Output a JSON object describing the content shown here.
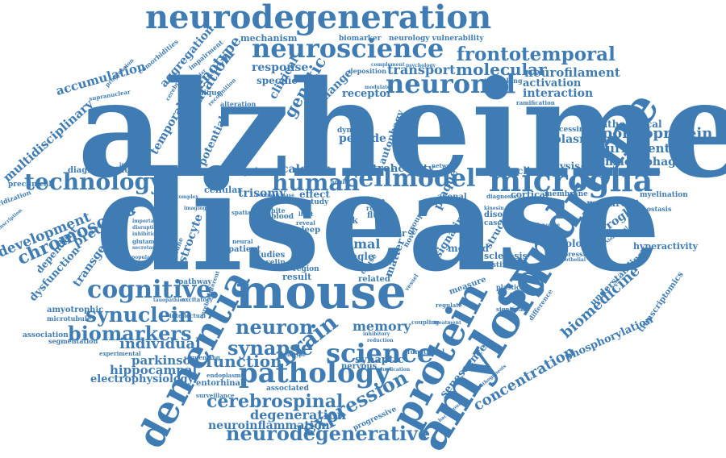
{
  "colors": {
    "word": "#3f7cb4",
    "background": "#ffffff"
  },
  "words": [
    {
      "text": "alzheimer"
    },
    {
      "text": "disease"
    },
    {
      "text": "syndrome"
    },
    {
      "text": "amyloid"
    },
    {
      "text": "protein"
    },
    {
      "text": "dementia"
    },
    {
      "text": "mouse"
    },
    {
      "text": "neurodegeneration"
    },
    {
      "text": "neuroscience"
    },
    {
      "text": "frontotemporal"
    },
    {
      "text": "neuronal"
    },
    {
      "text": "microglia"
    },
    {
      "text": "cellmodel"
    },
    {
      "text": "human"
    },
    {
      "text": "technology"
    },
    {
      "text": "chromosome"
    },
    {
      "text": "development"
    },
    {
      "text": "cognitive"
    },
    {
      "text": "synuclein"
    },
    {
      "text": "biomarkers"
    },
    {
      "text": "neuron"
    },
    {
      "text": "synapse"
    },
    {
      "text": "pathology"
    },
    {
      "text": "cerebrospinal"
    },
    {
      "text": "brain"
    },
    {
      "text": "science"
    },
    {
      "text": "expression"
    },
    {
      "text": "neurodegenerative"
    },
    {
      "text": "concentration"
    },
    {
      "text": "biomedicine"
    },
    {
      "text": "phosphorylation"
    },
    {
      "text": "function"
    },
    {
      "text": "memory"
    },
    {
      "text": "individual"
    },
    {
      "text": "parkinson"
    },
    {
      "text": "hippocampal"
    },
    {
      "text": "electrophysiology"
    },
    {
      "text": "degeneration"
    },
    {
      "text": "neuroinflammation"
    },
    {
      "text": "apolipoprotein"
    },
    {
      "text": "pluripotent"
    },
    {
      "text": "macrophage"
    },
    {
      "text": "neurofilament"
    },
    {
      "text": "molecular"
    },
    {
      "text": "transport"
    },
    {
      "text": "interaction"
    },
    {
      "text": "activation"
    },
    {
      "text": "mechanism"
    },
    {
      "text": "biomarker"
    },
    {
      "text": "neurology vulnerability"
    },
    {
      "text": "aggregation"
    },
    {
      "text": "phenotype"
    },
    {
      "text": "mutation"
    },
    {
      "text": "accumulation"
    },
    {
      "text": "multidisciplinary"
    },
    {
      "text": "temporal"
    },
    {
      "text": "potential"
    },
    {
      "text": "genetic"
    },
    {
      "text": "clinical"
    },
    {
      "text": "response"
    },
    {
      "text": "specific"
    },
    {
      "text": "receptor"
    },
    {
      "text": "change"
    },
    {
      "text": "calcium"
    },
    {
      "text": "system"
    },
    {
      "text": "control"
    },
    {
      "text": "activity"
    },
    {
      "text": "peptide"
    },
    {
      "text": "autophagy"
    },
    {
      "text": "tauopathy"
    },
    {
      "text": "diagnostic"
    },
    {
      "text": "precursor"
    },
    {
      "text": "transgenic"
    },
    {
      "text": "dysfunction"
    },
    {
      "text": "dependent"
    },
    {
      "text": "preclinical"
    },
    {
      "text": "hybridization"
    },
    {
      "text": "astrocyte"
    },
    {
      "text": "trisomy"
    },
    {
      "text": "cellular"
    },
    {
      "text": "effect"
    },
    {
      "text": "animal"
    },
    {
      "text": "single"
    },
    {
      "text": "factor"
    },
    {
      "text": "plaque"
    },
    {
      "text": "signaling"
    },
    {
      "text": "method"
    },
    {
      "text": "structure"
    },
    {
      "text": "cortical"
    },
    {
      "text": "decline"
    },
    {
      "text": "analysis"
    },
    {
      "text": "plasmon"
    },
    {
      "text": "processing"
    },
    {
      "text": "pathological"
    },
    {
      "text": "research"
    },
    {
      "text": "microglial"
    },
    {
      "text": "biology"
    },
    {
      "text": "hyperactivity"
    },
    {
      "text": "understanding"
    },
    {
      "text": "transcriptomics"
    },
    {
      "text": "senescence"
    },
    {
      "text": "synaptic"
    },
    {
      "text": "nervous"
    },
    {
      "text": "associated"
    },
    {
      "text": "progressive"
    },
    {
      "text": "myelin"
    },
    {
      "text": "studies"
    },
    {
      "text": "patient"
    },
    {
      "text": "result"
    },
    {
      "text": "related"
    },
    {
      "text": "region"
    },
    {
      "text": "pathway"
    },
    {
      "text": "amyotrophic"
    },
    {
      "text": "microtubule"
    },
    {
      "text": "association"
    },
    {
      "text": "segmentation"
    },
    {
      "text": "experimental"
    },
    {
      "text": "surveillance"
    },
    {
      "text": "entorhinal"
    },
    {
      "text": "endoplasmic"
    },
    {
      "text": "sequencing"
    },
    {
      "text": "progression"
    },
    {
      "text": "comorbidities"
    },
    {
      "text": "impairment"
    },
    {
      "text": "technique"
    },
    {
      "text": "supranuclear"
    },
    {
      "text": "intestinal"
    },
    {
      "text": "depression"
    },
    {
      "text": "plasticity"
    },
    {
      "text": "sclerosis"
    },
    {
      "text": "disorder"
    },
    {
      "text": "cascade"
    },
    {
      "text": "myelination"
    },
    {
      "text": "homeostasis"
    },
    {
      "text": "transmission"
    },
    {
      "text": "phagocytosis"
    },
    {
      "text": "membrane"
    },
    {
      "text": "diagnosis"
    },
    {
      "text": "stem"
    },
    {
      "text": "loss"
    },
    {
      "text": "risk"
    },
    {
      "text": "level"
    },
    {
      "text": "fluid"
    },
    {
      "text": "blood"
    },
    {
      "text": "white"
    },
    {
      "text": "sleep"
    },
    {
      "text": "matter"
    },
    {
      "text": "novel"
    },
    {
      "text": "group"
    },
    {
      "text": "axonal"
    },
    {
      "text": "network"
    },
    {
      "text": "measure"
    },
    {
      "text": "regulate"
    },
    {
      "text": "functional"
    },
    {
      "text": "genotype"
    },
    {
      "text": "inhibitory"
    },
    {
      "text": "coupling"
    },
    {
      "text": "treatment"
    },
    {
      "text": "significant"
    },
    {
      "text": "difference"
    },
    {
      "text": "glutamate"
    },
    {
      "text": "disruption"
    },
    {
      "text": "inhibition"
    },
    {
      "text": "secretase"
    },
    {
      "text": "population"
    },
    {
      "text": "excitatory"
    },
    {
      "text": "tauopathies"
    },
    {
      "text": "intellectual"
    },
    {
      "text": "cerebellar"
    },
    {
      "text": "immune"
    },
    {
      "text": "interleukin"
    },
    {
      "text": "transcription"
    },
    {
      "text": "cerebral"
    },
    {
      "text": "intracellular"
    },
    {
      "text": "recognition"
    },
    {
      "text": "alteration"
    },
    {
      "text": "dynamic"
    },
    {
      "text": "deposition"
    },
    {
      "text": "trafficking"
    },
    {
      "text": "complement"
    },
    {
      "text": "psychology"
    },
    {
      "text": "ramification"
    },
    {
      "text": "modulate"
    },
    {
      "text": "lateral"
    },
    {
      "text": "cause"
    },
    {
      "text": "vessel"
    },
    {
      "text": "reduction"
    },
    {
      "text": "duplication"
    },
    {
      "text": "background"
    },
    {
      "text": "pathogenesis"
    },
    {
      "text": "mediated"
    },
    {
      "text": "endothelial"
    },
    {
      "text": "physiological"
    },
    {
      "text": "adenosine"
    },
    {
      "text": "kinesin"
    },
    {
      "text": "spatial"
    },
    {
      "text": "light"
    },
    {
      "text": "reveal"
    },
    {
      "text": "study"
    },
    {
      "text": "rule"
    },
    {
      "text": "adult"
    },
    {
      "text": "kinase"
    },
    {
      "text": "common"
    },
    {
      "text": "different"
    },
    {
      "text": "neural"
    },
    {
      "text": "complex"
    },
    {
      "text": "imaging"
    },
    {
      "text": "important"
    }
  ]
}
